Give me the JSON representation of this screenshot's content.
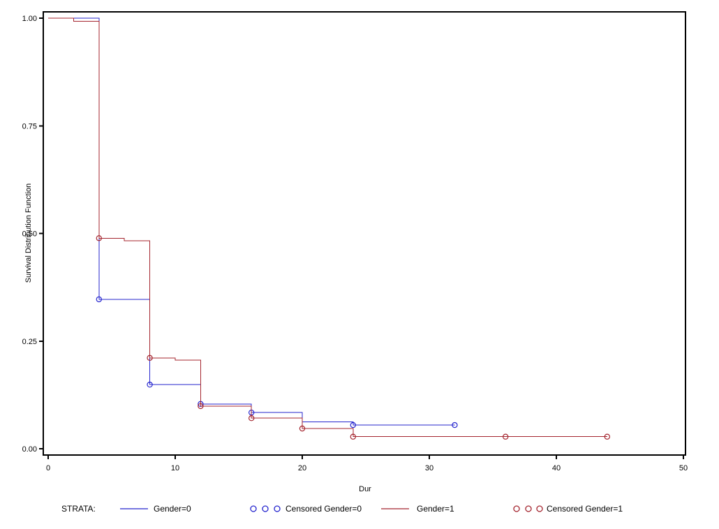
{
  "chart_data": {
    "type": "line",
    "subtype": "kaplan-meier-step-survival",
    "title": "",
    "xlabel": "Dur",
    "ylabel": "Survival Distribution Function",
    "xlim": [
      0,
      50
    ],
    "ylim": [
      0.0,
      1.0
    ],
    "grid": false,
    "frame": true,
    "legend_position": "bottom",
    "x_ticks": [
      {
        "value": 0,
        "label": "0"
      },
      {
        "value": 10,
        "label": "10"
      },
      {
        "value": 20,
        "label": "20"
      },
      {
        "value": 30,
        "label": "30"
      },
      {
        "value": 40,
        "label": "40"
      },
      {
        "value": 50,
        "label": "50"
      }
    ],
    "y_ticks": [
      {
        "value": 0.0,
        "label": "0.00"
      },
      {
        "value": 0.25,
        "label": "0.25"
      },
      {
        "value": 0.5,
        "label": "0.50"
      },
      {
        "value": 0.75,
        "label": "0.75"
      },
      {
        "value": 1.0,
        "label": "1.00"
      }
    ],
    "series": [
      {
        "name": "Gender=0",
        "color": "#2424CE",
        "steps": [
          [
            0,
            1.0
          ],
          [
            4,
            1.0
          ],
          [
            4,
            0.347
          ],
          [
            8,
            0.347
          ],
          [
            8,
            0.149
          ],
          [
            12,
            0.149
          ],
          [
            12,
            0.104
          ],
          [
            16,
            0.104
          ],
          [
            16,
            0.084
          ],
          [
            20,
            0.084
          ],
          [
            20,
            0.062
          ],
          [
            24,
            0.062
          ],
          [
            24,
            0.055
          ],
          [
            32,
            0.055
          ]
        ],
        "censored": [
          [
            4,
            0.347
          ],
          [
            8,
            0.149
          ],
          [
            12,
            0.104
          ],
          [
            16,
            0.084
          ],
          [
            24,
            0.055
          ],
          [
            32,
            0.055
          ]
        ]
      },
      {
        "name": "Gender=1",
        "color": "#A4242E",
        "steps": [
          [
            0,
            1.0
          ],
          [
            2,
            1.0
          ],
          [
            2,
            0.993
          ],
          [
            4,
            0.993
          ],
          [
            4,
            0.489
          ],
          [
            6,
            0.489
          ],
          [
            6,
            0.483
          ],
          [
            8,
            0.483
          ],
          [
            8,
            0.211
          ],
          [
            10,
            0.211
          ],
          [
            10,
            0.206
          ],
          [
            12,
            0.206
          ],
          [
            12,
            0.099
          ],
          [
            16,
            0.099
          ],
          [
            16,
            0.071
          ],
          [
            20,
            0.071
          ],
          [
            20,
            0.047
          ],
          [
            24,
            0.047
          ],
          [
            24,
            0.028
          ],
          [
            36,
            0.028
          ],
          [
            44,
            0.028
          ]
        ],
        "censored": [
          [
            4,
            0.489
          ],
          [
            8,
            0.211
          ],
          [
            12,
            0.099
          ],
          [
            16,
            0.071
          ],
          [
            20,
            0.047
          ],
          [
            24,
            0.028
          ],
          [
            36,
            0.028
          ],
          [
            44,
            0.028
          ]
        ]
      }
    ],
    "legend": {
      "title": "STRATA:",
      "entries": [
        {
          "label": "Gender=0",
          "marker": "line",
          "color": "#2424CE"
        },
        {
          "label": "Censored Gender=0",
          "marker": "circles",
          "color": "#2424CE"
        },
        {
          "label": "Gender=1",
          "marker": "line",
          "color": "#A4242E"
        },
        {
          "label": "Censored Gender=1",
          "marker": "circles",
          "color": "#A4242E"
        }
      ]
    },
    "colors": {
      "axis": "#000000",
      "text": "#000000",
      "background": "#FFFFFF"
    }
  }
}
